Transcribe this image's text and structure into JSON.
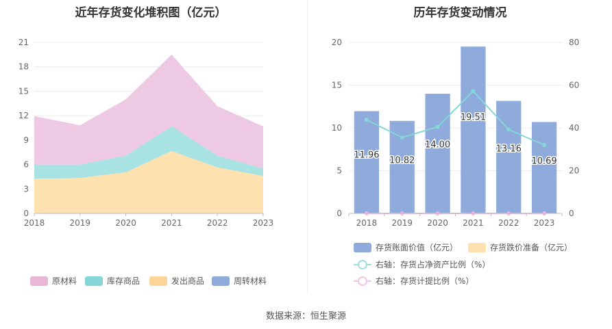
{
  "source_label": "数据来源：恒生聚源",
  "chart_data": [
    {
      "type": "area",
      "stacked": true,
      "title": "近年存货变化堆积图（亿元）",
      "categories": [
        "2018",
        "2019",
        "2020",
        "2021",
        "2022",
        "2023"
      ],
      "y_ticks": [
        0,
        3,
        6,
        9,
        12,
        15,
        18,
        21
      ],
      "ylim": [
        0,
        21
      ],
      "series": [
        {
          "name": "周转材料",
          "color": "#8eabdb",
          "values": [
            0.05,
            0.05,
            0.05,
            0.05,
            0.05,
            0.05
          ]
        },
        {
          "name": "发出商品",
          "color": "#fde2b0",
          "values": [
            4.2,
            4.3,
            5.0,
            7.6,
            5.6,
            4.55
          ]
        },
        {
          "name": "库存商品",
          "color": "#a9e2e3",
          "values": [
            1.75,
            1.65,
            2.05,
            3.05,
            1.45,
            0.9
          ]
        },
        {
          "name": "原材料",
          "color": "#eec9e3",
          "values": [
            5.96,
            4.82,
            6.9,
            8.81,
            6.06,
            5.19
          ]
        }
      ],
      "legend": [
        {
          "name": "原材料",
          "color": "#e9b6d8"
        },
        {
          "name": "库存商品",
          "color": "#86d6d8"
        },
        {
          "name": "发出商品",
          "color": "#fcd598"
        },
        {
          "name": "周转材料",
          "color": "#8eabdb"
        }
      ]
    },
    {
      "type": "bar+line",
      "title": "历年存货变动情况",
      "categories": [
        "2018",
        "2019",
        "2020",
        "2021",
        "2022",
        "2023"
      ],
      "left_ticks": [
        0,
        5,
        10,
        15,
        20
      ],
      "right_ticks": [
        0,
        20,
        40,
        60,
        80
      ],
      "ylim_left": [
        0,
        20
      ],
      "ylim_right": [
        0,
        80
      ],
      "bars": {
        "name": "存货账面价值（亿元）",
        "color": "#8eabdb",
        "values": [
          11.96,
          10.82,
          14.0,
          19.51,
          13.16,
          10.69
        ],
        "labels": [
          "11.96",
          "10.82",
          "14.00",
          "19.51",
          "13.16",
          "10.69"
        ]
      },
      "bars2": {
        "name": "存货跌价准备（亿元）",
        "color": "#fde2b0",
        "values": [
          0,
          0,
          0,
          0,
          0,
          0
        ]
      },
      "line1": {
        "name": "右轴：存货占净资产比例（%）",
        "color": "#86d6d8",
        "values": [
          43.8,
          35.5,
          40.5,
          57.2,
          39.2,
          32.0
        ]
      },
      "line2": {
        "name": "右轴：存货计提比例（%）",
        "color": "#f2b8dc",
        "values": [
          0,
          0,
          0,
          0,
          0,
          0
        ]
      }
    }
  ]
}
